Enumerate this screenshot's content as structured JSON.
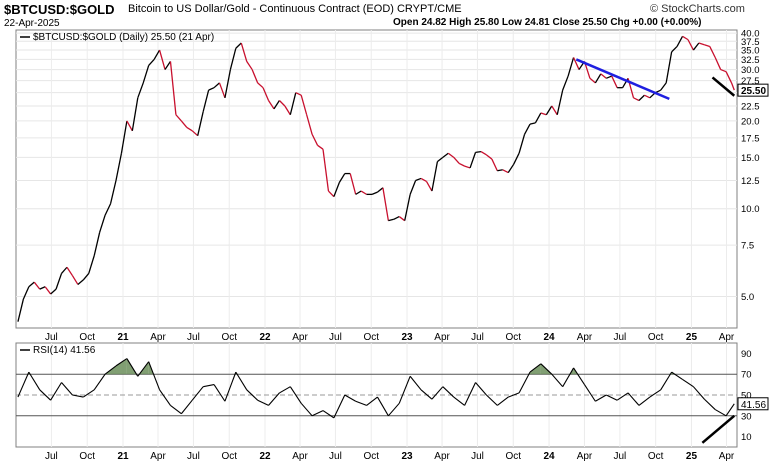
{
  "header": {
    "symbol": "$BTCUSD:$GOLD",
    "description": "Bitcoin to US Dollar/Gold - Continuous Contract (EOD)  CRYPT/CME",
    "date": "22-Apr-2025",
    "ohlc": "Open 24.82   High 25.80   Low 24.81   Close 25.50   Chg +0.00 (+0.00%)",
    "brand": "© StockCharts.com",
    "brand_icon": "stockcharts-logo-icon"
  },
  "chart_data": [
    {
      "type": "line",
      "legend": "$BTCUSD:$GOLD (Daily) 25.50 (21 Apr)",
      "y_scale": "log",
      "ylim": [
        3.9,
        41
      ],
      "y_ticks": [
        40.0,
        37.5,
        35.0,
        32.5,
        30.0,
        27.5,
        25.0,
        22.5,
        20.0,
        17.5,
        15.0,
        12.5,
        10.0,
        7.5,
        5.0
      ],
      "y_tick_labels": [
        "40.0",
        "37.5",
        "35.0",
        "32.5",
        "30.0",
        "27.5",
        "25.0",
        "22.5",
        "20.0",
        "17.5",
        "15.0",
        "12.5",
        "10.0",
        "7.5",
        "5.0"
      ],
      "last_value_label": "25.50",
      "x_tick_labels": [
        "Jul",
        "Oct",
        "21",
        "Apr",
        "Jul",
        "Oct",
        "22",
        "Apr",
        "Jul",
        "Oct",
        "23",
        "Apr",
        "Jul",
        "Oct",
        "24",
        "Apr",
        "Jul",
        "Oct",
        "25",
        "Apr"
      ],
      "x_ticks": [
        "2020-07-01",
        "2020-10-01",
        "2021-01-01",
        "2021-04-01",
        "2021-07-01",
        "2021-10-01",
        "2022-01-01",
        "2022-04-01",
        "2022-07-01",
        "2022-10-01",
        "2023-01-01",
        "2023-04-01",
        "2023-07-01",
        "2023-10-01",
        "2024-01-01",
        "2024-04-01",
        "2024-07-01",
        "2024-10-01",
        "2025-01-01",
        "2025-04-01"
      ],
      "grid": true,
      "colors": {
        "up": "#000000",
        "down": "#c8102e",
        "trendline": "#1f1fe0",
        "annotation": "#000000"
      },
      "series": [
        {
          "x": [
            "2020-04-06",
            "2020-04-20",
            "2020-05-04",
            "2020-05-18",
            "2020-06-01",
            "2020-06-15",
            "2020-06-29",
            "2020-07-13",
            "2020-07-27",
            "2020-08-10",
            "2020-08-24",
            "2020-09-07",
            "2020-09-21",
            "2020-10-05",
            "2020-10-19",
            "2020-11-02",
            "2020-11-16",
            "2020-11-30",
            "2020-12-14",
            "2020-12-28",
            "2021-01-11",
            "2021-01-25",
            "2021-02-08",
            "2021-02-22",
            "2021-03-08",
            "2021-03-22",
            "2021-04-05",
            "2021-04-19",
            "2021-05-03",
            "2021-05-17",
            "2021-05-31",
            "2021-06-14",
            "2021-06-28",
            "2021-07-12",
            "2021-07-26",
            "2021-08-09",
            "2021-08-23",
            "2021-09-06",
            "2021-09-20",
            "2021-10-04",
            "2021-10-18",
            "2021-11-01",
            "2021-11-15",
            "2021-11-29",
            "2021-12-13",
            "2021-12-27",
            "2022-01-10",
            "2022-01-24",
            "2022-02-07",
            "2022-02-21",
            "2022-03-07",
            "2022-03-21",
            "2022-04-04",
            "2022-04-18",
            "2022-05-02",
            "2022-05-16",
            "2022-05-30",
            "2022-06-13",
            "2022-06-27",
            "2022-07-11",
            "2022-07-25",
            "2022-08-08",
            "2022-08-22",
            "2022-09-05",
            "2022-09-19",
            "2022-10-03",
            "2022-10-17",
            "2022-10-31",
            "2022-11-14",
            "2022-11-28",
            "2022-12-12",
            "2022-12-26",
            "2023-01-09",
            "2023-01-23",
            "2023-02-06",
            "2023-02-20",
            "2023-03-06",
            "2023-03-20",
            "2023-04-03",
            "2023-04-17",
            "2023-05-01",
            "2023-05-15",
            "2023-05-29",
            "2023-06-12",
            "2023-06-26",
            "2023-07-10",
            "2023-07-24",
            "2023-08-07",
            "2023-08-21",
            "2023-09-04",
            "2023-09-18",
            "2023-10-02",
            "2023-10-16",
            "2023-10-30",
            "2023-11-13",
            "2023-11-27",
            "2023-12-11",
            "2023-12-25",
            "2024-01-08",
            "2024-01-22",
            "2024-02-05",
            "2024-02-19",
            "2024-03-04",
            "2024-03-18",
            "2024-04-01",
            "2024-04-15",
            "2024-04-29",
            "2024-05-13",
            "2024-05-27",
            "2024-06-10",
            "2024-06-24",
            "2024-07-08",
            "2024-07-22",
            "2024-08-05",
            "2024-08-19",
            "2024-09-02",
            "2024-09-16",
            "2024-09-30",
            "2024-10-14",
            "2024-10-28",
            "2024-11-11",
            "2024-11-25",
            "2024-12-09",
            "2024-12-23",
            "2025-01-06",
            "2025-01-20",
            "2025-02-03",
            "2025-02-17",
            "2025-03-03",
            "2025-03-17",
            "2025-03-31",
            "2025-04-14",
            "2025-04-21"
          ],
          "values": [
            4.1,
            4.9,
            5.4,
            5.6,
            5.3,
            5.4,
            5.1,
            5.3,
            6.0,
            6.3,
            5.9,
            5.5,
            5.7,
            6.0,
            6.9,
            8.3,
            9.5,
            10.4,
            12.5,
            15.5,
            20.0,
            18.5,
            24.0,
            27.0,
            31.0,
            32.5,
            35.0,
            30.0,
            32.0,
            21.0,
            20.0,
            19.0,
            18.5,
            17.8,
            21.5,
            25.5,
            26.0,
            27.0,
            24.0,
            30.0,
            35.5,
            37.0,
            32.0,
            30.0,
            27.0,
            26.0,
            23.5,
            22.0,
            23.5,
            22.5,
            21.0,
            25.0,
            24.5,
            21.0,
            18.0,
            16.5,
            16.0,
            11.5,
            11.0,
            12.3,
            13.2,
            13.2,
            11.2,
            11.5,
            11.2,
            11.2,
            11.4,
            11.8,
            9.1,
            9.2,
            9.4,
            9.1,
            11.2,
            12.5,
            12.7,
            12.4,
            11.5,
            14.5,
            15.0,
            15.5,
            15.0,
            14.3,
            14.0,
            13.8,
            15.6,
            15.7,
            15.3,
            14.8,
            13.5,
            13.6,
            13.3,
            14.2,
            15.5,
            18.0,
            19.5,
            19.7,
            21.3,
            21.0,
            22.5,
            21.0,
            25.5,
            28.5,
            33.0,
            30.0,
            32.0,
            28.0,
            27.0,
            29.0,
            28.0,
            28.5,
            26.0,
            26.0,
            28.0,
            24.0,
            23.5,
            24.5,
            24.0,
            25.0,
            25.5,
            27.0,
            34.5,
            36.0,
            39.0,
            38.0,
            35.0,
            37.0,
            36.5,
            36.0,
            33.0,
            30.0,
            29.5,
            27.0,
            25.5
          ]
        }
      ],
      "trendline": {
        "x": [
          "2024-03-11",
          "2024-11-05"
        ],
        "y": [
          32.5,
          23.8
        ]
      },
      "annotation_line": {
        "x": [
          "2025-02-24",
          "2025-04-21"
        ],
        "y": [
          28.2,
          24.4
        ]
      }
    },
    {
      "type": "line",
      "legend": "RSI(14) 41.56",
      "ylim": [
        0,
        100
      ],
      "y_ticks": [
        90,
        70,
        50,
        30,
        10
      ],
      "y_tick_labels": [
        "90",
        "70",
        "50",
        "30",
        "10"
      ],
      "last_value_label": "41.56",
      "levels": [
        70,
        50,
        30
      ],
      "x_tick_labels": [
        "Jul",
        "Oct",
        "21",
        "Apr",
        "Jul",
        "Oct",
        "22",
        "Apr",
        "Jul",
        "Oct",
        "23",
        "Apr",
        "Jul",
        "Oct",
        "24",
        "Apr",
        "Jul",
        "Oct",
        "25",
        "Apr"
      ],
      "x_ticks": [
        "2020-07-01",
        "2020-10-01",
        "2021-01-01",
        "2021-04-01",
        "2021-07-01",
        "2021-10-01",
        "2022-01-01",
        "2022-04-01",
        "2022-07-01",
        "2022-10-01",
        "2023-01-01",
        "2023-04-01",
        "2023-07-01",
        "2023-10-01",
        "2024-01-01",
        "2024-04-01",
        "2024-07-01",
        "2024-10-01",
        "2025-01-01",
        "2025-04-01"
      ],
      "colors": {
        "line": "#000000",
        "overbought_fill": "#6b8e5a",
        "annotation": "#000000"
      },
      "series": [
        {
          "x": [
            "2020-04-06",
            "2020-05-04",
            "2020-06-01",
            "2020-06-29",
            "2020-07-27",
            "2020-08-24",
            "2020-09-21",
            "2020-10-19",
            "2020-11-16",
            "2020-12-14",
            "2021-01-11",
            "2021-02-08",
            "2021-03-08",
            "2021-04-05",
            "2021-05-03",
            "2021-05-31",
            "2021-06-28",
            "2021-07-26",
            "2021-08-23",
            "2021-09-20",
            "2021-10-18",
            "2021-11-15",
            "2021-12-13",
            "2022-01-10",
            "2022-02-07",
            "2022-03-07",
            "2022-04-04",
            "2022-05-02",
            "2022-05-30",
            "2022-06-27",
            "2022-07-25",
            "2022-08-22",
            "2022-09-19",
            "2022-10-17",
            "2022-11-14",
            "2022-12-12",
            "2023-01-09",
            "2023-02-06",
            "2023-03-06",
            "2023-04-03",
            "2023-05-01",
            "2023-05-29",
            "2023-06-26",
            "2023-07-24",
            "2023-08-21",
            "2023-09-18",
            "2023-10-16",
            "2023-11-13",
            "2023-12-11",
            "2024-01-08",
            "2024-02-05",
            "2024-03-04",
            "2024-04-01",
            "2024-04-29",
            "2024-05-27",
            "2024-06-24",
            "2024-07-22",
            "2024-08-19",
            "2024-09-16",
            "2024-10-14",
            "2024-11-11",
            "2024-12-09",
            "2025-01-06",
            "2025-02-03",
            "2025-03-03",
            "2025-03-31",
            "2025-04-21"
          ],
          "values": [
            48,
            72,
            55,
            45,
            62,
            50,
            48,
            55,
            70,
            78,
            85,
            68,
            82,
            55,
            40,
            32,
            45,
            58,
            60,
            44,
            72,
            55,
            45,
            40,
            52,
            58,
            42,
            30,
            35,
            28,
            50,
            44,
            40,
            48,
            30,
            42,
            68,
            55,
            46,
            58,
            48,
            40,
            62,
            50,
            40,
            48,
            52,
            72,
            80,
            70,
            58,
            76,
            60,
            44,
            50,
            45,
            52,
            40,
            48,
            55,
            72,
            65,
            58,
            46,
            36,
            30,
            41.56
          ]
        }
      ],
      "annotation_line": {
        "x": [
          "2025-01-29",
          "2025-04-21"
        ],
        "y": [
          4,
          30
        ]
      }
    }
  ]
}
